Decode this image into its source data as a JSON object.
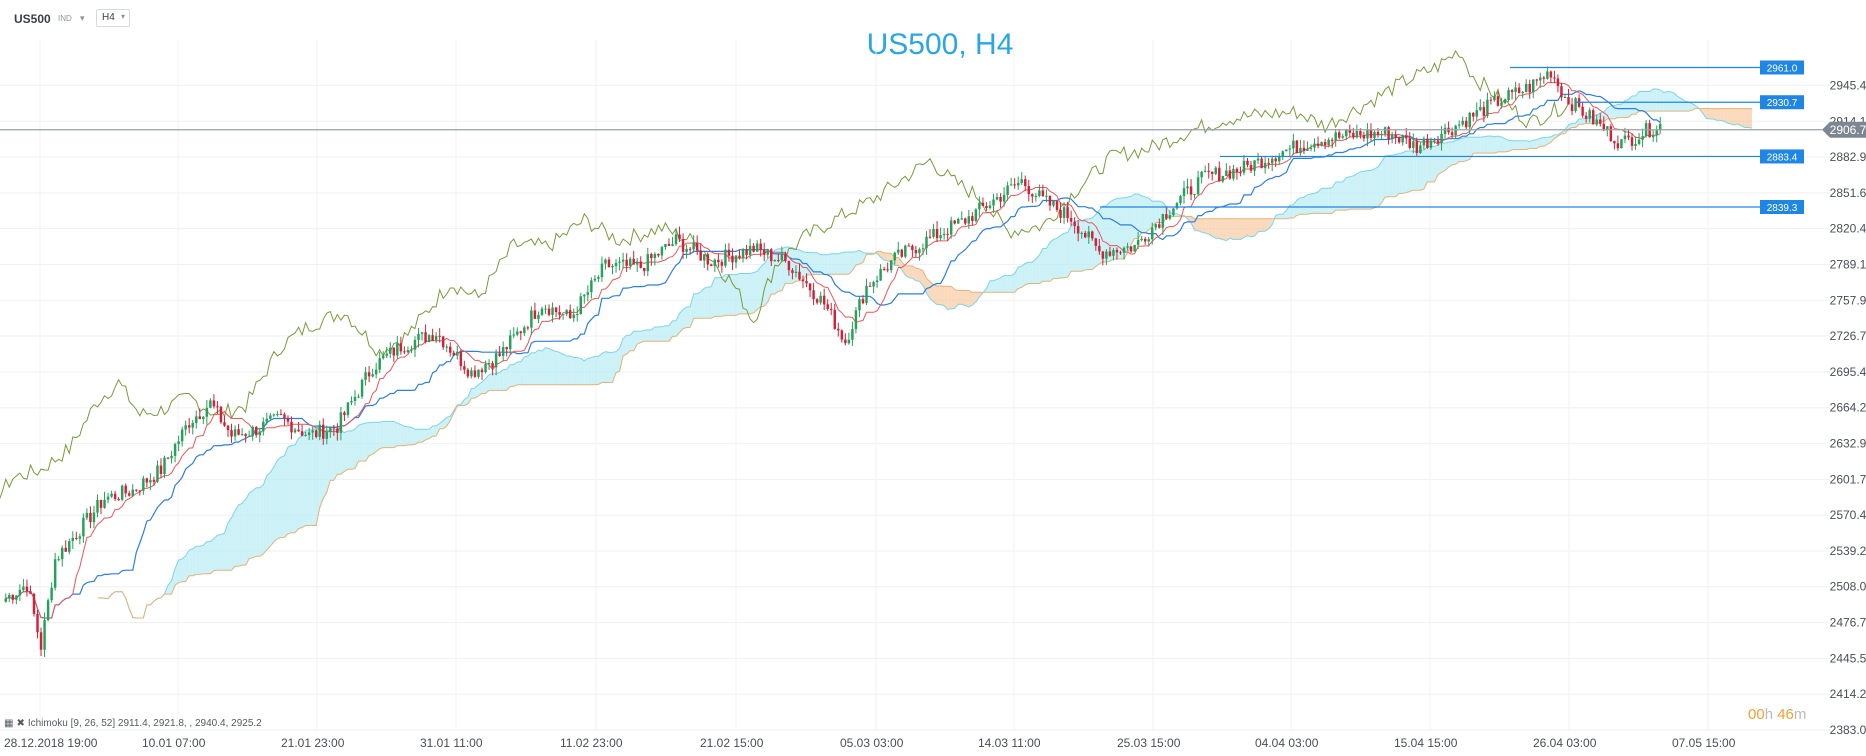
{
  "toolbar": {
    "symbol": "US500",
    "symbol_type": "IND",
    "timeframe": "H4"
  },
  "countdown": {
    "hours": "00",
    "hours_unit": "h",
    "minutes": "46",
    "minutes_unit": "m"
  },
  "indicator_legend": "Ichimoku  [9, 26, 52]  2911.4,  2921.8,  , 2940.4,  2925.2",
  "colors": {
    "title": "#2aa6e3",
    "bull": "#26a05a",
    "bear": "#d0233a",
    "tenkan": "#e35a5a",
    "kijun": "#2d7fdd",
    "chikou": "#7a9a3c",
    "kumo_bull": "#b6ecf4",
    "kumo_bear": "#f8c9a0",
    "level_line": "#1f86e6",
    "last_price_bg": "#7d8793"
  },
  "chart_data": {
    "type": "candlestick",
    "title": "US500, H4",
    "ylim": [
      2383.0,
      2985.0
    ],
    "y_ticks": [
      "2945.4",
      "2914.1",
      "2882.9",
      "2851.6",
      "2820.4",
      "2789.1",
      "2757.9",
      "2726.7",
      "2695.4",
      "2664.2",
      "2632.9",
      "2601.7",
      "2570.4",
      "2539.2",
      "2508.0",
      "2476.7",
      "2445.5",
      "2414.2",
      "2383.0"
    ],
    "x_ticks": [
      "28.12.2018  19:00",
      "10.01  07:00",
      "21.01  23:00",
      "31.01  11:00",
      "11.02  23:00",
      "21.02  15:00",
      "05.03  03:00",
      "14.03  11:00",
      "25.03  15:00",
      "04.04  03:00",
      "15.04  15:00",
      "26.04  03:00",
      "07.05  15:00"
    ],
    "last_price": "2906.7",
    "levels": [
      {
        "label": "2961.0",
        "value": 2961.0
      },
      {
        "label": "2930.7",
        "value": 2930.7
      },
      {
        "label": "2883.4",
        "value": 2883.4
      },
      {
        "label": "2839.3",
        "value": 2839.3
      }
    ],
    "close_anchors": [
      [
        0,
        2498
      ],
      [
        6,
        2510
      ],
      [
        10,
        2456
      ],
      [
        14,
        2532
      ],
      [
        22,
        2562
      ],
      [
        28,
        2585
      ],
      [
        36,
        2592
      ],
      [
        44,
        2610
      ],
      [
        52,
        2652
      ],
      [
        58,
        2668
      ],
      [
        64,
        2640
      ],
      [
        70,
        2644
      ],
      [
        78,
        2655
      ],
      [
        86,
        2640
      ],
      [
        94,
        2648
      ],
      [
        104,
        2700
      ],
      [
        112,
        2718
      ],
      [
        122,
        2730
      ],
      [
        132,
        2695
      ],
      [
        140,
        2710
      ],
      [
        152,
        2755
      ],
      [
        160,
        2742
      ],
      [
        170,
        2788
      ],
      [
        180,
        2787
      ],
      [
        190,
        2810
      ],
      [
        200,
        2792
      ],
      [
        212,
        2803
      ],
      [
        222,
        2790
      ],
      [
        232,
        2755
      ],
      [
        238,
        2722
      ],
      [
        244,
        2770
      ],
      [
        252,
        2794
      ],
      [
        262,
        2812
      ],
      [
        272,
        2828
      ],
      [
        280,
        2845
      ],
      [
        288,
        2862
      ],
      [
        294,
        2845
      ],
      [
        302,
        2830
      ],
      [
        310,
        2800
      ],
      [
        320,
        2805
      ],
      [
        330,
        2838
      ],
      [
        340,
        2866
      ],
      [
        350,
        2872
      ],
      [
        362,
        2888
      ],
      [
        372,
        2898
      ],
      [
        382,
        2902
      ],
      [
        392,
        2904
      ],
      [
        400,
        2892
      ],
      [
        412,
        2912
      ],
      [
        422,
        2930
      ],
      [
        432,
        2944
      ],
      [
        438,
        2958
      ],
      [
        442,
        2935
      ],
      [
        450,
        2915
      ],
      [
        458,
        2895
      ],
      [
        468,
        2910
      ]
    ]
  }
}
